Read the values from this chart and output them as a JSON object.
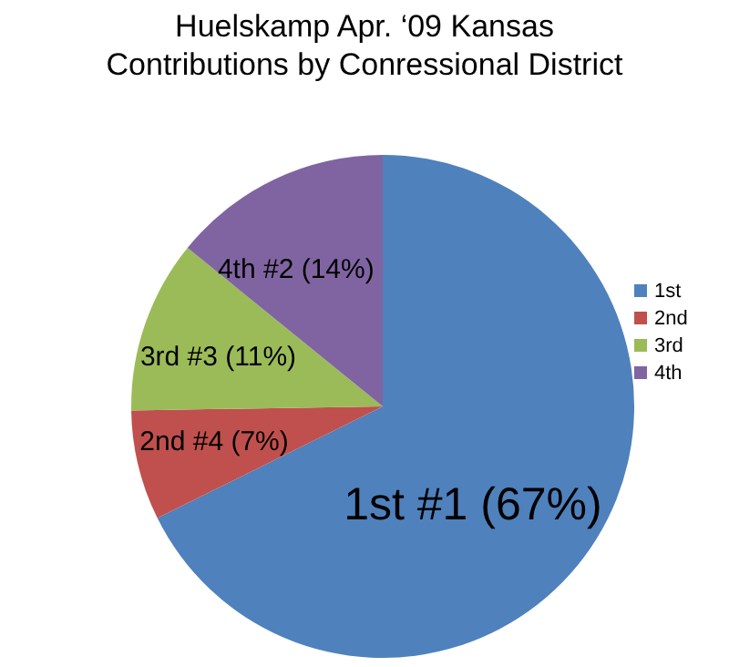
{
  "chart_data": {
    "type": "pie",
    "title": "Huelskamp Apr. ‘09 Kansas\nContributions by Conressional District",
    "categories": [
      "1st",
      "2nd",
      "3rd",
      "4th"
    ],
    "values": [
      67,
      7,
      11,
      14
    ],
    "colors": [
      "#4f81bd",
      "#c0504d",
      "#9bbb59",
      "#8064a2"
    ],
    "value_labels": [
      "1st #1 (67%)",
      "2nd #4 (7%)",
      "3rd #3 (11%)",
      "4th #2 (14%)"
    ],
    "legend": "right"
  }
}
